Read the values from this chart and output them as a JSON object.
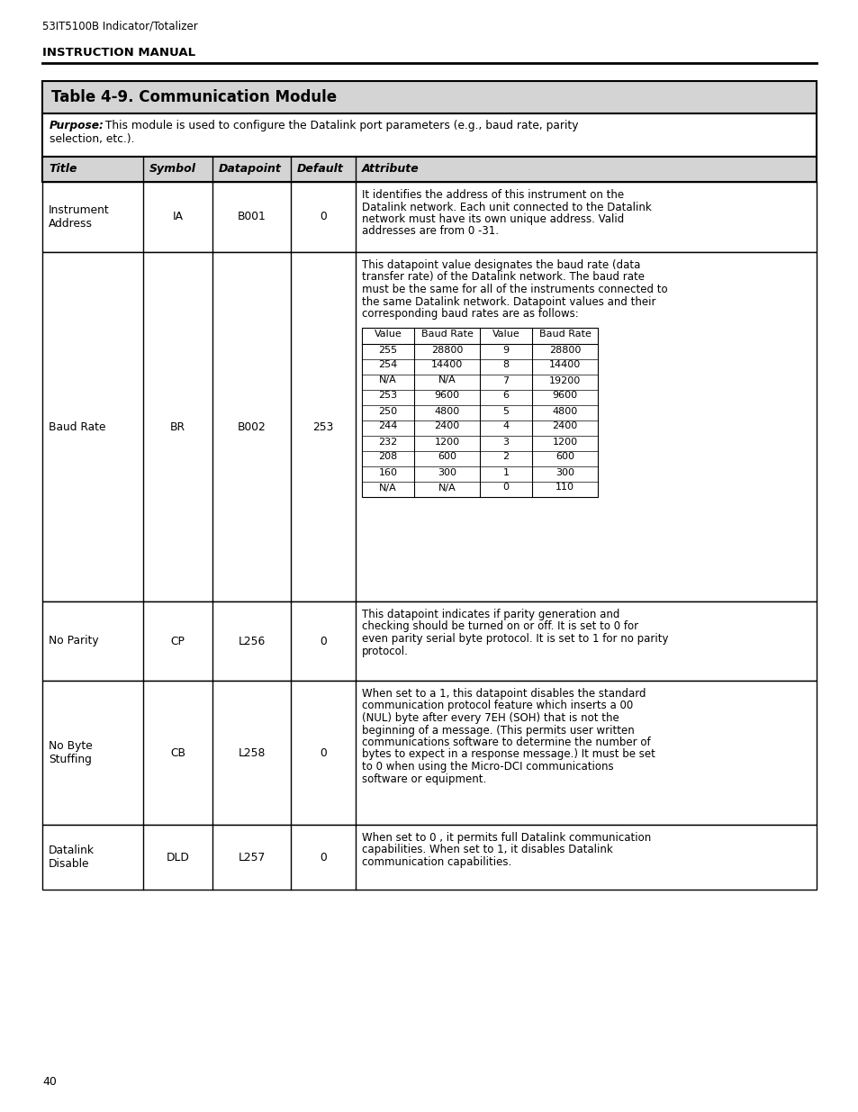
{
  "page_header": "53IT5100B Indicator/Totalizer",
  "section_header": "INSTRUCTION MANUAL",
  "table_title": "Table 4-9. Communication Module",
  "col_headers": [
    "Title",
    "Symbol",
    "Datapoint",
    "Default",
    "Attribute"
  ],
  "rows": [
    {
      "title": "Instrument\nAddress",
      "symbol": "IA",
      "datapoint": "B001",
      "default": "0",
      "attribute": "It identifies the address of this instrument on the\nDatalink network. Each unit connected to the Datalink\nnetwork must have its own unique address. Valid\naddresses are from 0 -31."
    },
    {
      "title": "Baud Rate",
      "symbol": "BR",
      "datapoint": "B002",
      "default": "253",
      "attribute": "baud_rate_special"
    },
    {
      "title": "No Parity",
      "symbol": "CP",
      "datapoint": "L256",
      "default": "0",
      "attribute": "This datapoint indicates if parity generation and\nchecking should be turned on or off. It is set to 0 for\neven parity serial byte protocol. It is set to 1 for no parity\nprotocol."
    },
    {
      "title": "No Byte\nStuffing",
      "symbol": "CB",
      "datapoint": "L258",
      "default": "0",
      "attribute": "When set to a 1, this datapoint disables the standard\ncommunication protocol feature which inserts a 00\n(NUL) byte after every 7EH (SOH) that is not the\nbeginning of a message. (This permits user written\ncommunications software to determine the number of\nbytes to expect in a response message.) It must be set\nto 0 when using the Micro-DCI communications\nsoftware or equipment."
    },
    {
      "title": "Datalink\nDisable",
      "symbol": "DLD",
      "datapoint": "L257",
      "default": "0",
      "attribute": "When set to 0 , it permits full Datalink communication\ncapabilities. When set to 1, it disables Datalink\ncommunication capabilities."
    }
  ],
  "baud_rate_intro": "This datapoint value designates the baud rate (data\ntransfer rate) of the Datalink network. The baud rate\nmust be the same for all of the instruments connected to\nthe same Datalink network. Datapoint values and their\ncorresponding baud rates are as follows:",
  "baud_table_headers": [
    "Value",
    "Baud Rate",
    "Value",
    "Baud Rate"
  ],
  "baud_table_rows": [
    [
      "255",
      "28800",
      "9",
      "28800"
    ],
    [
      "254",
      "14400",
      "8",
      "14400"
    ],
    [
      "N/A",
      "N/A",
      "7",
      "19200"
    ],
    [
      "253",
      "9600",
      "6",
      "9600"
    ],
    [
      "250",
      "4800",
      "5",
      "4800"
    ],
    [
      "244",
      "2400",
      "4",
      "2400"
    ],
    [
      "232",
      "1200",
      "3",
      "1200"
    ],
    [
      "208",
      "600",
      "2",
      "600"
    ],
    [
      "160",
      "300",
      "1",
      "300"
    ],
    [
      "N/A",
      "N/A",
      "0",
      "110"
    ]
  ],
  "page_number": "40",
  "gray_bg": "#d4d4d4",
  "white_bg": "#ffffff",
  "border_color": "#000000"
}
